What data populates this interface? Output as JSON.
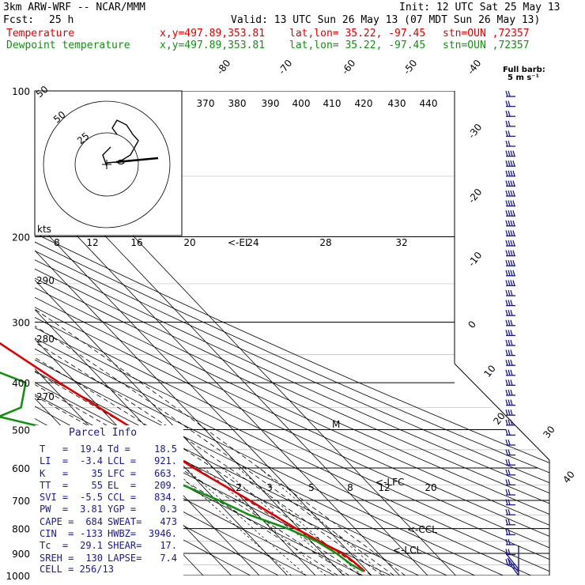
{
  "header": {
    "model": "3km ARW-WRF -- NCAR/MMM",
    "init": "Init: 12 UTC Sat 25 May 13",
    "fcst_label": "Fcst:",
    "fcst_value": "25 h",
    "valid": "Valid: 13 UTC Sun 26 May 13 (07 MDT Sun 26 May 13)",
    "lines": [
      {
        "name": "Temperature",
        "color": "#e00000",
        "coords": "x,y=497.89,353.81",
        "latlon": "lat,lon= 35.22, -97.45",
        "stn": "stn=OUN ,72357"
      },
      {
        "name": "Dewpoint temperature",
        "color": "#138f13",
        "coords": "x,y=497.89,353.81",
        "latlon": "lat,lon= 35.22, -97.45",
        "stn": "stn=OUN ,72357"
      }
    ]
  },
  "chart_data": {
    "type": "line",
    "pressure_ticks": [
      "100",
      "200",
      "300",
      "400",
      "500",
      "600",
      "700",
      "800",
      "900",
      "1000"
    ],
    "pressure_levels": [
      100,
      200,
      300,
      400,
      500,
      600,
      700,
      800,
      900,
      1000
    ],
    "isotherm_labels": [
      "-80",
      "-70",
      "-60",
      "-50",
      "-40",
      "-30",
      "-20",
      "-10",
      "0",
      "10",
      "20",
      "30",
      "40"
    ],
    "theta_e_labels": [
      "370",
      "380",
      "390",
      "400",
      "410",
      "420",
      "430",
      "440"
    ],
    "hodo_speed_labels": [
      "8",
      "12",
      "16",
      "20",
      "24",
      "28",
      "32"
    ],
    "hodo_ring_labels": [
      "50",
      "25",
      "kts"
    ],
    "theta_labels": [
      "290",
      "280",
      "270"
    ],
    "mixing_ratio_labels": [
      "2",
      "3",
      "5",
      "8",
      "12",
      "20"
    ],
    "series": [
      {
        "name": "Temperature",
        "color": "#e00000",
        "points": [
          [
            100,
            -62
          ],
          [
            150,
            -58
          ],
          [
            200,
            -56
          ],
          [
            250,
            -47
          ],
          [
            300,
            -38
          ],
          [
            400,
            -26
          ],
          [
            500,
            -15
          ],
          [
            600,
            -7
          ],
          [
            700,
            2
          ],
          [
            800,
            9
          ],
          [
            850,
            13
          ],
          [
            900,
            17
          ],
          [
            925,
            18
          ],
          [
            950,
            18.5
          ],
          [
            980,
            19
          ]
        ]
      },
      {
        "name": "Dewpoint temperature",
        "color": "#138f13",
        "points": [
          [
            100,
            -85
          ],
          [
            200,
            -82
          ],
          [
            250,
            -70
          ],
          [
            300,
            -62
          ],
          [
            350,
            -54
          ],
          [
            400,
            -38
          ],
          [
            450,
            -48
          ],
          [
            470,
            -59
          ],
          [
            500,
            -44
          ],
          [
            600,
            -25
          ],
          [
            700,
            -9
          ],
          [
            750,
            -3
          ],
          [
            800,
            6
          ],
          [
            850,
            12
          ],
          [
            900,
            15
          ],
          [
            950,
            16.5
          ],
          [
            980,
            18.5
          ]
        ]
      }
    ],
    "markers": [
      "<-EL",
      "<-LFC",
      "<-CCL",
      "<-LCL"
    ],
    "full_barb_label": "Full barb:",
    "full_barb_value": "5 m s⁻¹",
    "parcel_info": {
      "title": "Parcel Info",
      "rows": [
        {
          "k1": "T   =",
          "v1": "19.4",
          "k2": "Td =",
          "v2": "18.5"
        },
        {
          "k1": "LI  =",
          "v1": "-3.4",
          "k2": "LCL =",
          "v2": "921."
        },
        {
          "k1": "K   =",
          "v1": "35",
          "k2": "LFC =",
          "v2": "663."
        },
        {
          "k1": "TT  =",
          "v1": "55",
          "k2": "EL  =",
          "v2": "209."
        },
        {
          "k1": "SVI =",
          "v1": "-5.5",
          "k2": "CCL =",
          "v2": "834."
        },
        {
          "k1": "PW  =",
          "v1": "3.81",
          "k2": "YGP =",
          "v2": "0.3"
        },
        {
          "k1": "CAPE =",
          "v1": "684",
          "k2": "SWEAT=",
          "v2": "473"
        },
        {
          "k1": "CIN  =",
          "v1": "-133",
          "k2": "HWBZ=",
          "v2": "3946."
        },
        {
          "k1": "Tc  =",
          "v1": "29.1",
          "k2": "SHEAR=",
          "v2": "17."
        },
        {
          "k1": "SREH =",
          "v1": "130",
          "k2": "LAPSE=",
          "v2": "7.4"
        }
      ],
      "cell": "CELL = 256/13"
    }
  }
}
